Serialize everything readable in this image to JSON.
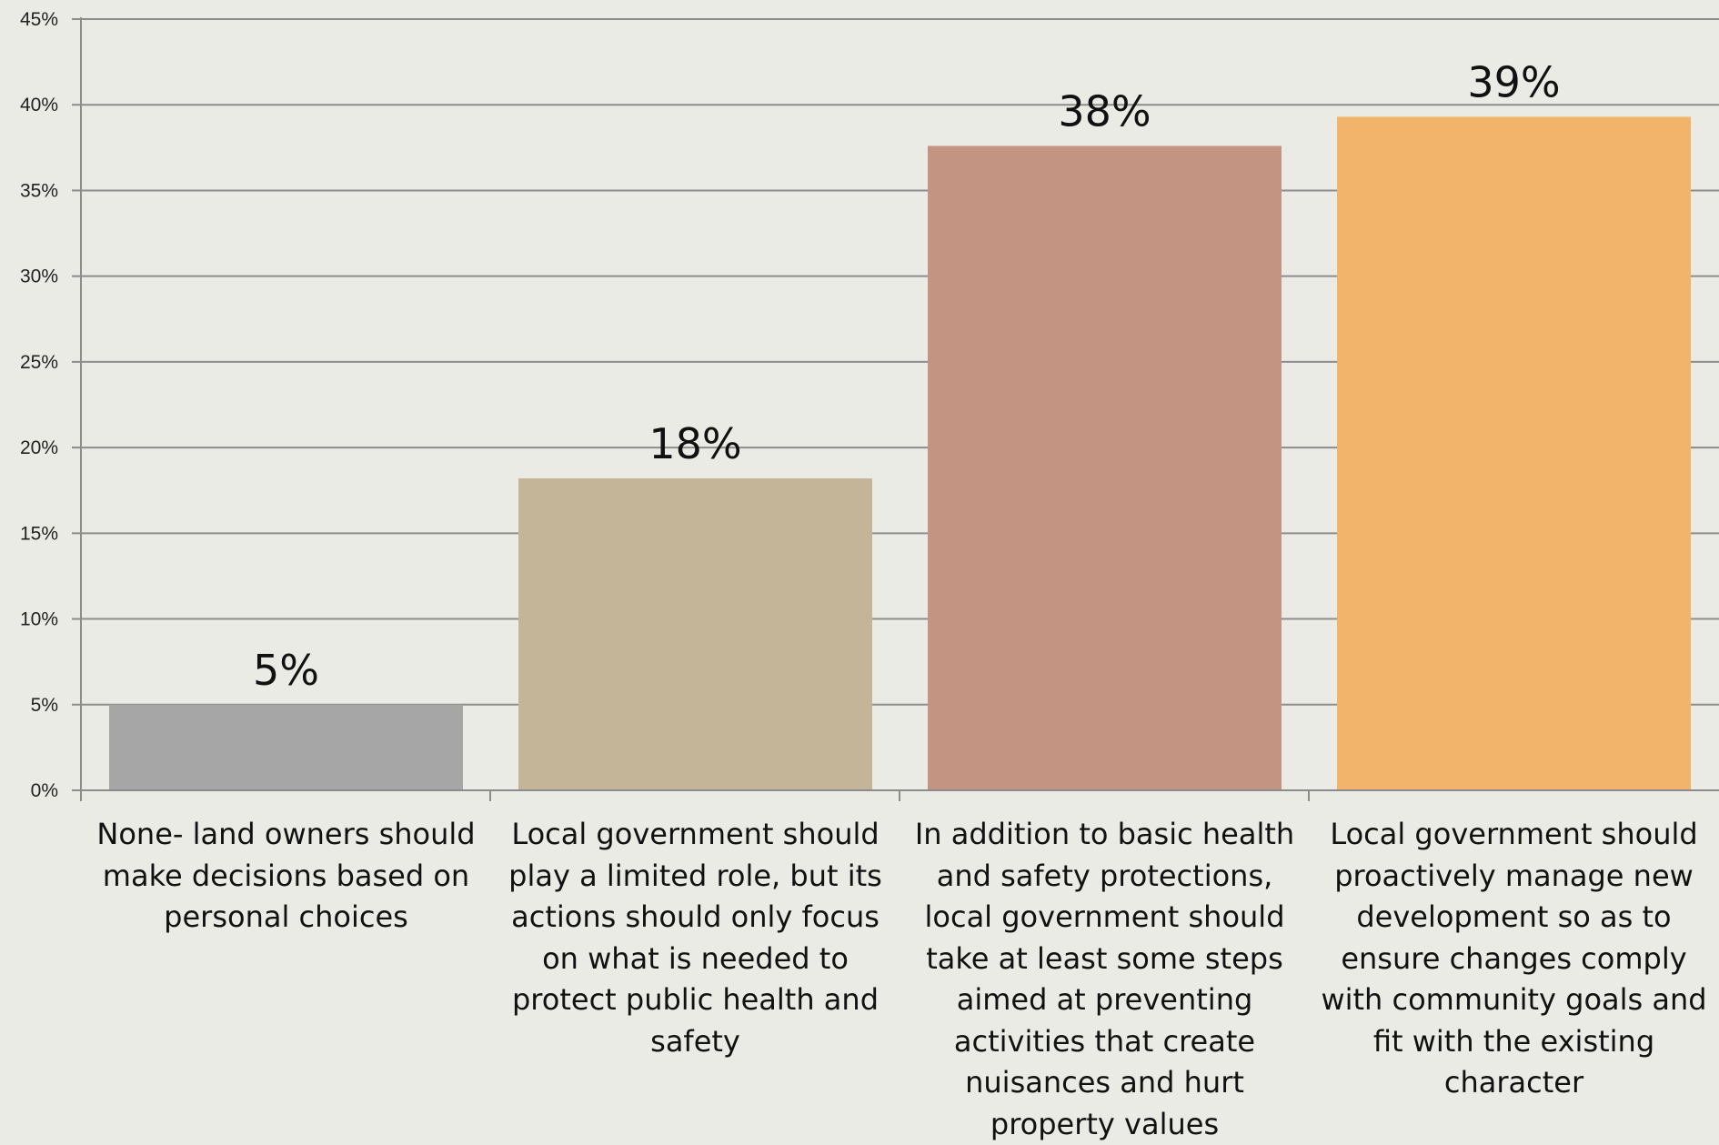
{
  "chart_data": {
    "type": "bar",
    "categories": [
      "None- land owners should make decisions based on personal choices",
      "Local government should play a limited role, but its actions should only focus on what is needed to protect public health and safety",
      "In addition to basic health and safety protections, local government should take at least some steps aimed at preventing activities that create nuisances and hurt property values",
      "Local government should proactively manage new development so as to ensure changes comply with community goals and fit with the existing character"
    ],
    "values": [
      5,
      18.2,
      37.6,
      39.3
    ],
    "data_labels": [
      "5%",
      "18%",
      "38%",
      "39%"
    ],
    "colors": [
      "#a6a6a6",
      "#c4b498",
      "#c29481",
      "#f2b36b"
    ],
    "ylim": [
      0,
      45
    ],
    "y_ticks": [
      "0%",
      "5%",
      "10%",
      "15%",
      "20%",
      "25%",
      "30%",
      "35%",
      "40%",
      "45%"
    ],
    "y_tick_values": [
      0,
      5,
      10,
      15,
      20,
      25,
      30,
      35,
      40,
      45
    ],
    "grid": true,
    "legend": "none"
  }
}
